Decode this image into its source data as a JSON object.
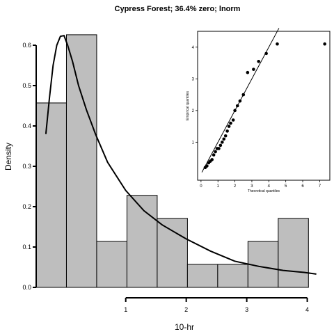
{
  "chart_data": [
    {
      "type": "bar",
      "title": "Cypress Forest; 36.4% zero; lnorm",
      "xlabel": "10-hr",
      "ylabel": "Density",
      "xlim": [
        -0.48,
        4.35
      ],
      "ylim": [
        0,
        0.65
      ],
      "x_ticks": [
        1,
        2,
        3,
        4
      ],
      "x_tick_labels": [
        "1",
        "2",
        "3",
        "4"
      ],
      "y_ticks": [
        0.0,
        0.1,
        0.2,
        0.3,
        0.4,
        0.5,
        0.6
      ],
      "y_tick_labels": [
        "0.0",
        "0.1",
        "0.2",
        "0.3",
        "0.4",
        "0.5",
        "0.6"
      ],
      "bin_width": 0.5,
      "bins": [
        {
          "start": -0.48,
          "density": 0.457
        },
        {
          "start": 0.02,
          "density": 0.626
        },
        {
          "start": 0.52,
          "density": 0.114
        },
        {
          "start": 1.02,
          "density": 0.228
        },
        {
          "start": 1.52,
          "density": 0.171
        },
        {
          "start": 2.02,
          "density": 0.057
        },
        {
          "start": 2.52,
          "density": 0.057
        },
        {
          "start": 3.02,
          "density": 0.114
        },
        {
          "start": 3.52,
          "density": 0.171
        }
      ],
      "fitted_curve": {
        "distribution": "lnorm",
        "x": [
          -0.32,
          -0.26,
          -0.2,
          -0.14,
          -0.08,
          -0.02,
          0.04,
          0.12,
          0.22,
          0.35,
          0.5,
          0.7,
          1.0,
          1.3,
          1.6,
          2.0,
          2.4,
          2.8,
          3.2,
          3.6,
          3.95,
          4.15
        ],
        "y": [
          0.38,
          0.47,
          0.55,
          0.6,
          0.622,
          0.624,
          0.6,
          0.56,
          0.5,
          0.44,
          0.38,
          0.31,
          0.24,
          0.19,
          0.155,
          0.12,
          0.09,
          0.065,
          0.052,
          0.042,
          0.037,
          0.033
        ]
      }
    },
    {
      "type": "scatter",
      "title": "",
      "xlabel": "Theoretical quantiles",
      "ylabel": "Empirical quantiles",
      "xlim": [
        -0.2,
        7.6
      ],
      "ylim": [
        -0.2,
        4.5
      ],
      "x_ticks": [
        0,
        1,
        2,
        3,
        4,
        5,
        6,
        7
      ],
      "x_tick_labels": [
        "0",
        "1",
        "2",
        "3",
        "4",
        "5",
        "6",
        "7"
      ],
      "y_ticks": [
        1,
        2,
        3,
        4
      ],
      "y_tick_labels": [
        "1",
        "2",
        "3",
        "4"
      ],
      "reference_line": {
        "x": [
          0.05,
          4.6
        ],
        "y": [
          0.05,
          4.6
        ]
      },
      "points": {
        "x": [
          0.25,
          0.35,
          0.45,
          0.55,
          0.65,
          0.75,
          0.85,
          0.95,
          1.05,
          1.15,
          1.25,
          1.35,
          1.45,
          1.55,
          1.65,
          1.75,
          1.9,
          2.0,
          2.15,
          2.3,
          2.5,
          2.75,
          3.1,
          3.4,
          3.85,
          4.5,
          7.3
        ],
        "y": [
          0.2,
          0.25,
          0.35,
          0.4,
          0.45,
          0.6,
          0.7,
          0.8,
          0.8,
          0.9,
          1.0,
          1.1,
          1.2,
          1.35,
          1.5,
          1.6,
          1.7,
          2.0,
          2.15,
          2.3,
          2.5,
          3.2,
          3.3,
          3.55,
          3.8,
          4.1,
          4.1
        ]
      }
    }
  ]
}
